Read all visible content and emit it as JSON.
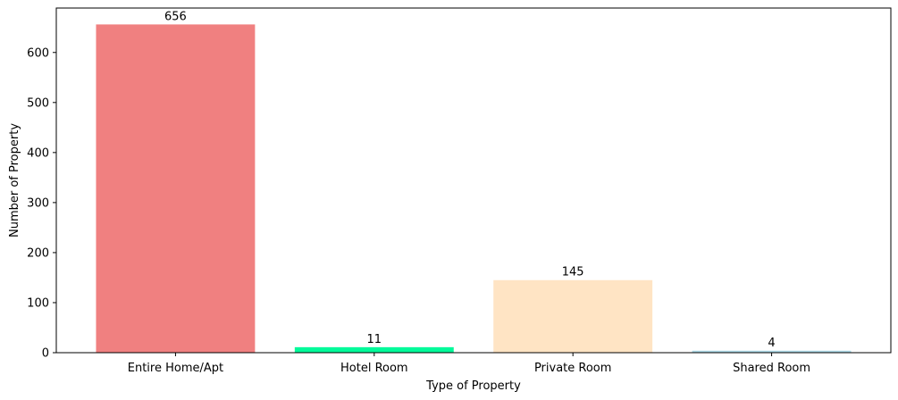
{
  "chart_data": {
    "type": "bar",
    "title": "",
    "xlabel": "Type of Property",
    "ylabel": "Number of Property",
    "categories": [
      "Entire Home/Apt",
      "Hotel Room",
      "Private Room",
      "Shared Room"
    ],
    "values": [
      656,
      11,
      145,
      4
    ],
    "data_labels": [
      "656",
      "11",
      "145",
      "4"
    ],
    "colors": [
      "#f08080",
      "#00fa9a",
      "#ffe4c4",
      "#add8e6"
    ],
    "ylim": [
      0,
      688.8
    ],
    "yticks": [
      0,
      100,
      200,
      300,
      400,
      500,
      600
    ],
    "ytick_labels": [
      "0",
      "100",
      "200",
      "300",
      "400",
      "500",
      "600"
    ],
    "grid": false,
    "legend": "none"
  }
}
